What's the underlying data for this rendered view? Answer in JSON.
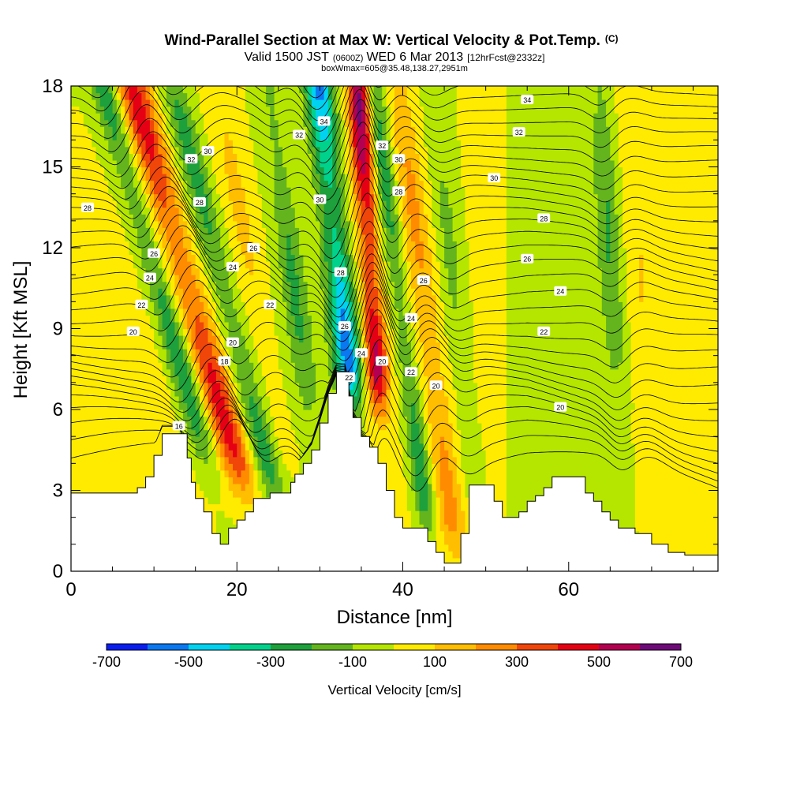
{
  "header": {
    "title_main": "Wind-Parallel Section at Max W: Vertical Velocity & Pot.Temp.",
    "title_mark": "(C)",
    "valid_a": "Valid 1500 JST",
    "valid_b": "(0600Z)",
    "valid_c": "WED 6 Mar 2013",
    "valid_d": "[12hrFcst@2332z]",
    "box_info": "boxWmax=605@35.48,138.27,2951m"
  },
  "colorbar": {
    "title": "Vertical Velocity [cm/s]",
    "tick_labels": [
      "-700",
      "-500",
      "-300",
      "-100",
      "100",
      "300",
      "500",
      "700"
    ],
    "levels": [
      -700,
      -600,
      -500,
      -400,
      -300,
      -200,
      -100,
      0,
      100,
      200,
      300,
      400,
      500,
      600,
      700
    ],
    "colors": [
      "#0a1ef0",
      "#0a78f0",
      "#00d2f0",
      "#00d28c",
      "#1ea03c",
      "#64b41e",
      "#b4e600",
      "#ffeb00",
      "#ffbe00",
      "#ff8c00",
      "#f0460a",
      "#e60014",
      "#b40050",
      "#6e0a78"
    ]
  },
  "chart_data": {
    "type": "heatmap",
    "xlabel": "Distance [nm]",
    "ylabel": "Height [Kft MSL]",
    "xlim": [
      0,
      78
    ],
    "ylim": [
      0,
      18
    ],
    "x_ticks": [
      0,
      20,
      40,
      60
    ],
    "y_ticks": [
      0,
      3,
      6,
      9,
      12,
      15,
      18
    ],
    "field": "Vertical Velocity [cm/s]",
    "terrain_kft": [
      [
        0,
        2.9
      ],
      [
        6,
        2.9
      ],
      [
        8,
        3.1
      ],
      [
        9,
        3.5
      ],
      [
        10,
        4.3
      ],
      [
        11,
        5.1
      ],
      [
        13,
        5.1
      ],
      [
        14,
        4.2
      ],
      [
        14.5,
        3.3
      ],
      [
        15,
        2.7
      ],
      [
        16,
        2.2
      ],
      [
        17,
        1.4
      ],
      [
        18,
        1.0
      ],
      [
        19,
        1.6
      ],
      [
        20,
        1.9
      ],
      [
        21,
        2.2
      ],
      [
        22,
        2.7
      ],
      [
        24,
        2.9
      ],
      [
        26,
        2.9
      ],
      [
        26.5,
        3.3
      ],
      [
        27,
        3.6
      ],
      [
        28,
        4.0
      ],
      [
        29,
        4.5
      ],
      [
        30,
        5.5
      ],
      [
        31,
        6.6
      ],
      [
        32,
        7.4
      ],
      [
        33,
        7.4
      ],
      [
        33.5,
        6.5
      ],
      [
        34,
        5.7
      ],
      [
        35,
        5.0
      ],
      [
        36,
        4.6
      ],
      [
        37,
        4.0
      ],
      [
        38,
        3.0
      ],
      [
        39,
        2.0
      ],
      [
        40,
        1.6
      ],
      [
        42,
        1.6
      ],
      [
        43,
        1.1
      ],
      [
        44,
        0.7
      ],
      [
        45,
        0.3
      ],
      [
        46,
        0.3
      ],
      [
        47,
        1.4
      ],
      [
        48,
        3.2
      ],
      [
        50,
        3.2
      ],
      [
        51,
        2.6
      ],
      [
        52,
        2.0
      ],
      [
        53,
        2.0
      ],
      [
        54,
        2.2
      ],
      [
        55,
        2.6
      ],
      [
        56,
        2.8
      ],
      [
        57,
        3.1
      ],
      [
        58,
        3.5
      ],
      [
        60,
        3.5
      ],
      [
        62,
        2.9
      ],
      [
        63,
        2.6
      ],
      [
        64,
        2.2
      ],
      [
        65,
        1.9
      ],
      [
        66,
        1.6
      ],
      [
        68,
        1.4
      ],
      [
        70,
        1.0
      ],
      [
        72,
        0.7
      ],
      [
        74,
        0.6
      ],
      [
        77,
        0.6
      ],
      [
        78,
        0.3
      ]
    ],
    "w_features": [
      {
        "x": 12.0,
        "y0": 4,
        "y1": 18,
        "tilt": -0.9,
        "w": 1.6,
        "amp": -320
      },
      {
        "x": 15.5,
        "y0": 3,
        "y1": 18,
        "tilt": -0.9,
        "w": 2.0,
        "amp": 460
      },
      {
        "x": 19.5,
        "y0": 3,
        "y1": 18,
        "tilt": -0.8,
        "w": 1.6,
        "amp": -260
      },
      {
        "x": 23.0,
        "y0": 4,
        "y1": 18,
        "tilt": -0.6,
        "w": 1.8,
        "amp": 140
      },
      {
        "x": 27.5,
        "y0": 6,
        "y1": 18,
        "tilt": -0.4,
        "w": 1.4,
        "amp": -200
      },
      {
        "x": 33.0,
        "y0": 6.5,
        "y1": 18,
        "tilt": -0.35,
        "w": 1.7,
        "amp": -560
      },
      {
        "x": 36.5,
        "y0": 6.5,
        "y1": 18,
        "tilt": -0.2,
        "w": 1.4,
        "amp": 650
      },
      {
        "x": 40.0,
        "y0": 1.5,
        "y1": 18,
        "tilt": -0.4,
        "w": 1.3,
        "amp": -300
      },
      {
        "x": 43.0,
        "y0": 1.0,
        "y1": 18,
        "tilt": -0.4,
        "w": 1.6,
        "amp": 220
      },
      {
        "x": 46.5,
        "y0": 3,
        "y1": 18,
        "tilt": -0.3,
        "w": 1.5,
        "amp": -150
      },
      {
        "x": 65.5,
        "y0": 7,
        "y1": 18,
        "tilt": -0.2,
        "w": 1.4,
        "amp": -200
      },
      {
        "x": 69.0,
        "y0": 2,
        "y1": 18,
        "tilt": -0.2,
        "w": 1.8,
        "amp": 110
      }
    ],
    "isentrope_labels": [
      {
        "label": "34",
        "x": 55,
        "y": 17.5
      },
      {
        "label": "32",
        "x": 54,
        "y": 16.3
      },
      {
        "label": "30",
        "x": 51,
        "y": 14.6
      },
      {
        "label": "28",
        "x": 2,
        "y": 13.5
      },
      {
        "label": "28",
        "x": 57,
        "y": 13.1
      },
      {
        "label": "26",
        "x": 55,
        "y": 11.6
      },
      {
        "label": "24",
        "x": 59,
        "y": 10.4
      },
      {
        "label": "22",
        "x": 57,
        "y": 8.9
      },
      {
        "label": "20",
        "x": 59,
        "y": 6.1
      },
      {
        "label": "26",
        "x": 10,
        "y": 11.8
      },
      {
        "label": "24",
        "x": 9.5,
        "y": 10.9
      },
      {
        "label": "22",
        "x": 8.5,
        "y": 9.9
      },
      {
        "label": "20",
        "x": 7.5,
        "y": 8.9
      },
      {
        "label": "32",
        "x": 14.5,
        "y": 15.3
      },
      {
        "label": "30",
        "x": 16.5,
        "y": 15.6
      },
      {
        "label": "28",
        "x": 15.5,
        "y": 13.7
      },
      {
        "label": "24",
        "x": 19.5,
        "y": 11.3
      },
      {
        "label": "20",
        "x": 19.5,
        "y": 8.5
      },
      {
        "label": "18",
        "x": 18.5,
        "y": 7.8
      },
      {
        "label": "16",
        "x": 13.0,
        "y": 5.4
      },
      {
        "label": "26",
        "x": 22,
        "y": 12.0
      },
      {
        "label": "22",
        "x": 24,
        "y": 9.9
      },
      {
        "label": "34",
        "x": 30.5,
        "y": 16.7
      },
      {
        "label": "32",
        "x": 27.5,
        "y": 16.2
      },
      {
        "label": "30",
        "x": 30,
        "y": 13.8
      },
      {
        "label": "28",
        "x": 32.5,
        "y": 11.1
      },
      {
        "label": "26",
        "x": 33,
        "y": 9.1
      },
      {
        "label": "22",
        "x": 33.5,
        "y": 7.2
      },
      {
        "label": "24",
        "x": 35,
        "y": 8.1
      },
      {
        "label": "32",
        "x": 37.5,
        "y": 15.8
      },
      {
        "label": "30",
        "x": 39.5,
        "y": 15.3
      },
      {
        "label": "28",
        "x": 39.5,
        "y": 14.1
      },
      {
        "label": "26",
        "x": 42.5,
        "y": 10.8
      },
      {
        "label": "24",
        "x": 41,
        "y": 9.4
      },
      {
        "label": "20",
        "x": 37.5,
        "y": 7.8
      },
      {
        "label": "22",
        "x": 41,
        "y": 7.4
      },
      {
        "label": "20",
        "x": 44,
        "y": 6.9
      }
    ]
  }
}
